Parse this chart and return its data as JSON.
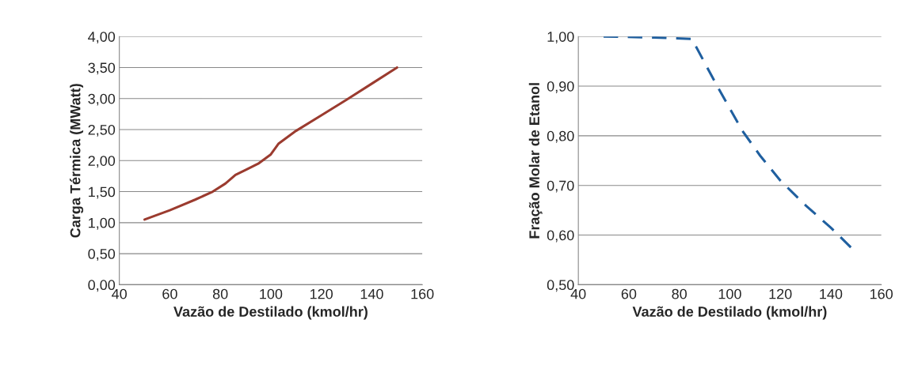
{
  "chart_data": [
    {
      "type": "line",
      "xlabel": "Vazão de Destilado (kmol/hr)",
      "ylabel": "Carga Térmica (MWatt)",
      "x": [
        50,
        60,
        70,
        77,
        82,
        86,
        90,
        95,
        100,
        103,
        110,
        120,
        130,
        140,
        150
      ],
      "series": [
        {
          "color": "#9b3b2f",
          "values": [
            1.05,
            1.2,
            1.37,
            1.5,
            1.63,
            1.77,
            1.85,
            1.95,
            2.1,
            2.27,
            2.48,
            2.73,
            2.98,
            3.24,
            3.5
          ]
        }
      ],
      "xlim": [
        40,
        160
      ],
      "xticks": [
        40,
        60,
        80,
        100,
        120,
        140,
        160
      ],
      "ylim": [
        0,
        4
      ],
      "yticks": [
        {
          "value": 0,
          "label": "0,00"
        },
        {
          "value": 0.5,
          "label": "0,50"
        },
        {
          "value": 1,
          "label": "1,00"
        },
        {
          "value": 1.5,
          "label": "1,50"
        },
        {
          "value": 2,
          "label": "2,00"
        },
        {
          "value": 2.5,
          "label": "2,50"
        },
        {
          "value": 3,
          "label": "3,00"
        },
        {
          "value": 3.5,
          "label": "3,50"
        },
        {
          "value": 4,
          "label": "4,00"
        }
      ],
      "grid": "y",
      "line_style": "solid"
    },
    {
      "type": "line",
      "xlabel": "Vazão de Destilado (kmol/hr)",
      "ylabel": "Fração Molar de Etanol",
      "x": [
        50,
        70,
        85,
        95,
        105,
        112,
        120,
        130,
        140,
        148
      ],
      "series": [
        {
          "color": "#1f5f9f",
          "values": [
            1.0,
            0.998,
            0.995,
            0.9,
            0.81,
            0.76,
            0.71,
            0.66,
            0.615,
            0.575
          ]
        }
      ],
      "xlim": [
        40,
        160
      ],
      "xticks": [
        40,
        60,
        80,
        100,
        120,
        140,
        160
      ],
      "ylim": [
        0.5,
        1.0
      ],
      "yticks": [
        {
          "value": 0.5,
          "label": "0,50"
        },
        {
          "value": 0.6,
          "label": "0,60"
        },
        {
          "value": 0.7,
          "label": "0,70"
        },
        {
          "value": 0.8,
          "label": "0,80"
        },
        {
          "value": 0.9,
          "label": "0,90"
        },
        {
          "value": 1.0,
          "label": "1,00"
        }
      ],
      "grid": "y",
      "line_style": "dashed"
    }
  ]
}
